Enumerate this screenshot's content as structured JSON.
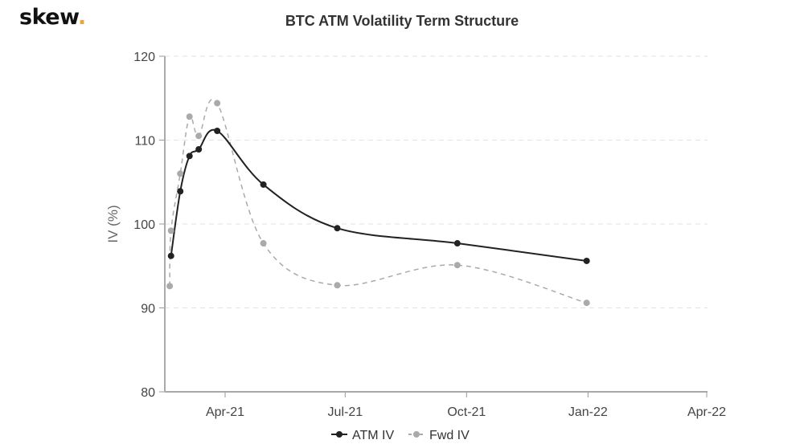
{
  "logo": {
    "text": "skew",
    "dot": ".",
    "dot_color": "#e8a63a"
  },
  "chart_data": {
    "type": "line",
    "title": "BTC ATM Volatility Term Structure",
    "xlabel": "",
    "ylabel": "IV (%)",
    "ylim": [
      80,
      120
    ],
    "yticks": [
      80,
      90,
      100,
      110,
      120
    ],
    "xlim": [
      "2021-02-12",
      "2022-04-01"
    ],
    "xticks": [
      {
        "date": "2021-04-01",
        "label": "Apr-21"
      },
      {
        "date": "2021-07-01",
        "label": "Jul-21"
      },
      {
        "date": "2021-10-01",
        "label": "Oct-21"
      },
      {
        "date": "2022-01-01",
        "label": "Jan-22"
      },
      {
        "date": "2022-04-01",
        "label": "Apr-22"
      }
    ],
    "grid": "horizontal dashed",
    "legend": "bottom-center",
    "series": [
      {
        "name": "ATM IV",
        "color": "#222222",
        "dash": false,
        "x": [
          "2021-02-19",
          "2021-02-26",
          "2021-03-05",
          "2021-03-12",
          "2021-03-26",
          "2021-04-30",
          "2021-06-25",
          "2021-09-24",
          "2021-12-31"
        ],
        "y": [
          96.2,
          103.9,
          108.1,
          108.9,
          111.1,
          104.7,
          99.5,
          97.7,
          95.6
        ]
      },
      {
        "name": "Fwd IV",
        "color": "#aaaaaa",
        "dash": true,
        "x": [
          "2021-02-18",
          "2021-02-19",
          "2021-02-26",
          "2021-03-05",
          "2021-03-12",
          "2021-03-26",
          "2021-04-30",
          "2021-06-25",
          "2021-09-24",
          "2021-12-31"
        ],
        "y": [
          92.6,
          99.2,
          106.0,
          112.8,
          110.5,
          114.4,
          97.7,
          92.7,
          95.1,
          90.6
        ]
      }
    ]
  }
}
